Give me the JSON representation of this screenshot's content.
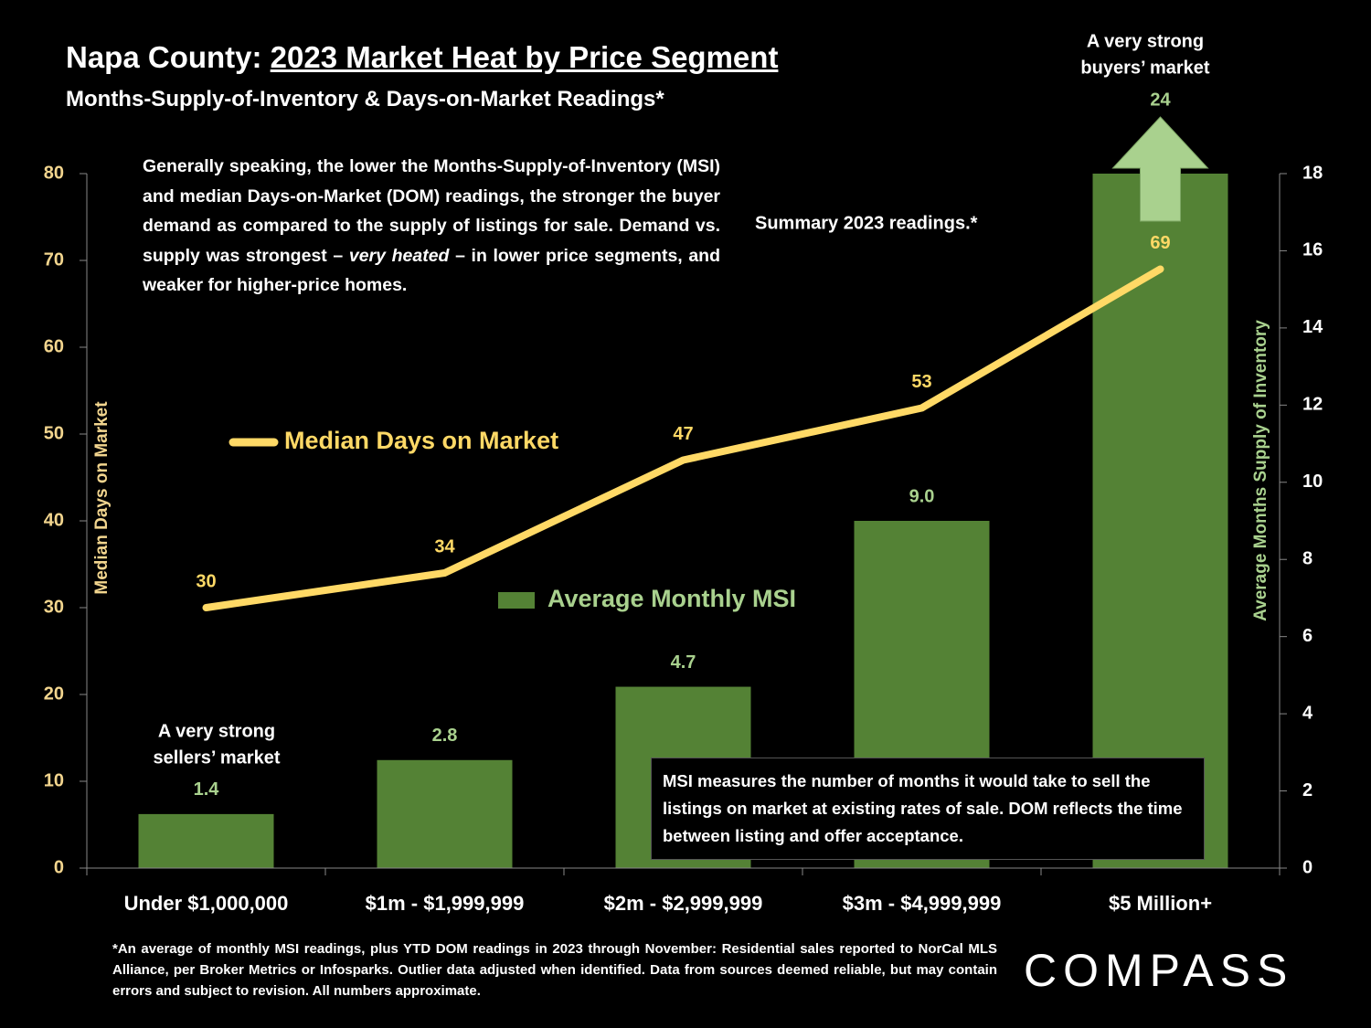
{
  "header": {
    "title": "Napa County: ",
    "title_underlined": "2023 Market Heat by Price Segment",
    "subtitle": "Months-Supply-of-Inventory & Days-on-Market Readings*"
  },
  "intro": [
    "Generally speaking, the lower the Months-Supply-of-Inventory (MSI) and median Days-on-Market (DOM) readings, the stronger the buyer demand as compared to the supply of listings for sale. Demand vs. supply was strongest – ",
    "very heated",
    " – in lower price segments, and weaker for higher-price homes."
  ],
  "chart_data": {
    "type": "combo",
    "categories": [
      "Under $1,000,000",
      "$1m - $1,999,999",
      "$2m - $2,999,999",
      "$3m - $4,999,999",
      "$5 Million+"
    ],
    "series": [
      {
        "name": "Average Monthly MSI",
        "type": "bar",
        "axis": "y2",
        "color": "#548235",
        "label_color": "#a9d18e",
        "values": [
          1.4,
          2.8,
          4.7,
          9.0,
          24
        ],
        "value_labels": [
          "1.4",
          "2.8",
          "4.7",
          "9.0",
          "24"
        ]
      },
      {
        "name": "Median Days on Market",
        "type": "line",
        "color": "#ffd966",
        "values": [
          30,
          34,
          47,
          53,
          69
        ]
      }
    ],
    "y_label": "Median Days on Market",
    "y2_label": "Average Months Supply of Inventory",
    "ylim": [
      0,
      80
    ],
    "yticks": [
      0,
      10,
      20,
      30,
      40,
      50,
      60,
      70,
      80
    ],
    "y2lim": [
      0,
      18
    ],
    "y2ticks": [
      0,
      2,
      4,
      6,
      8,
      10,
      12,
      14,
      16,
      18
    ],
    "annotations": {
      "summary": "Summary 2023 readings.*",
      "sellers": [
        "A very strong",
        "sellers’ market"
      ],
      "buyers": [
        "A very strong",
        "buyers’ market"
      ]
    }
  },
  "note": "MSI measures the number of months it would take to sell the listings on market at existing rates of sale. DOM reflects the time between listing and offer acceptance.",
  "footnote": "*An average of monthly MSI readings, plus YTD DOM readings in 2023 through November:  Residential sales reported to NorCal MLS Alliance, per Broker Metrics or Infosparks. Outlier data adjusted when identified. Data from sources deemed reliable, but may contain errors and subject to revision. All numbers approximate.",
  "logo": "COMPASS"
}
